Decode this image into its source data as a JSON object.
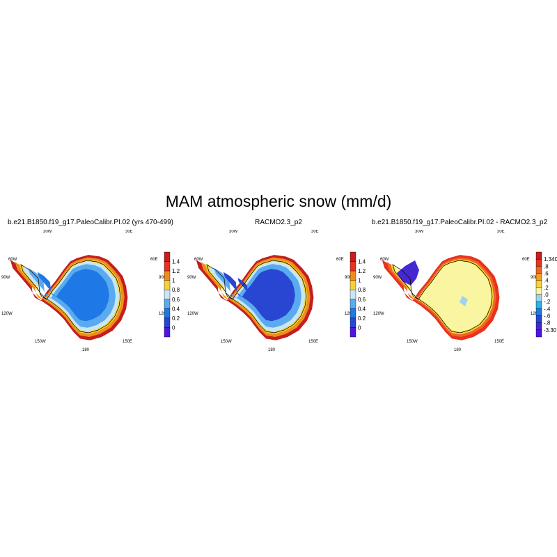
{
  "title": "MAM atmospheric snow (mm/d)",
  "panels": [
    {
      "title": "b.e21.B1850.f19_g17.PaleoCalibr.PI.02 (yrs 470-499)",
      "colorbar": {
        "labels": [
          "1.4",
          "1.2",
          "1",
          "0.8",
          "0.6",
          "0.4",
          "0.2",
          "0"
        ],
        "colors": [
          "#c41e1e",
          "#e8321e",
          "#f08c1e",
          "#f5d232",
          "#c8e6f5",
          "#5aaaf0",
          "#1e78e6",
          "#2846d2",
          "#5014e6"
        ]
      }
    },
    {
      "title": "RACMO2.3_p2",
      "colorbar": {
        "labels": [
          "1.4",
          "1.2",
          "1",
          "0.8",
          "0.6",
          "0.4",
          "0.2",
          "0"
        ],
        "colors": [
          "#c41e1e",
          "#e8321e",
          "#f08c1e",
          "#f5d232",
          "#c8e6f5",
          "#5aaaf0",
          "#1e78e6",
          "#2846d2",
          "#5014e6"
        ]
      }
    },
    {
      "title": "b.e21.B1850.f19_g17.PaleoCalibr.PI.02 - RACMO2.3_p2",
      "colorbar": {
        "labels": [
          "1.340",
          ".8",
          ".6",
          ".4",
          ".2",
          ".0",
          "-.2",
          "-.4",
          "-.6",
          "-.8",
          "-3.30"
        ],
        "colors": [
          "#c41e1e",
          "#e8321e",
          "#f06428",
          "#f5a01e",
          "#f5d23c",
          "#faf5a0",
          "#a0d2f0",
          "#28b4e6",
          "#1e78e6",
          "#2846d2",
          "#4628d2",
          "#5014e6"
        ]
      }
    }
  ],
  "longitude_labels": [
    "30W",
    "30E",
    "60W",
    "60E",
    "90W",
    "90E",
    "120W",
    "120E",
    "150W",
    "150E",
    "180"
  ],
  "chart_data": {
    "type": "heatmap",
    "title": "MAM atmospheric snow (mm/d)",
    "maps": [
      {
        "name": "b.e21.B1850.f19_g17.PaleoCalibr.PI.02 (yrs 470-499)",
        "value_range": [
          0,
          1.4
        ],
        "interior_mean": 0.35,
        "coastal_max": 1.5
      },
      {
        "name": "RACMO2.3_p2",
        "value_range": [
          0,
          1.4
        ],
        "interior_mean": 0.2,
        "coastal_max": 1.5
      },
      {
        "name": "b.e21.B1850.f19_g17.PaleoCalibr.PI.02 - RACMO2.3_p2",
        "value_range": [
          -3.3,
          1.34
        ],
        "interior_mean": 0.05,
        "coastal_min": -3.3,
        "coastal_max": 1.34
      }
    ]
  }
}
